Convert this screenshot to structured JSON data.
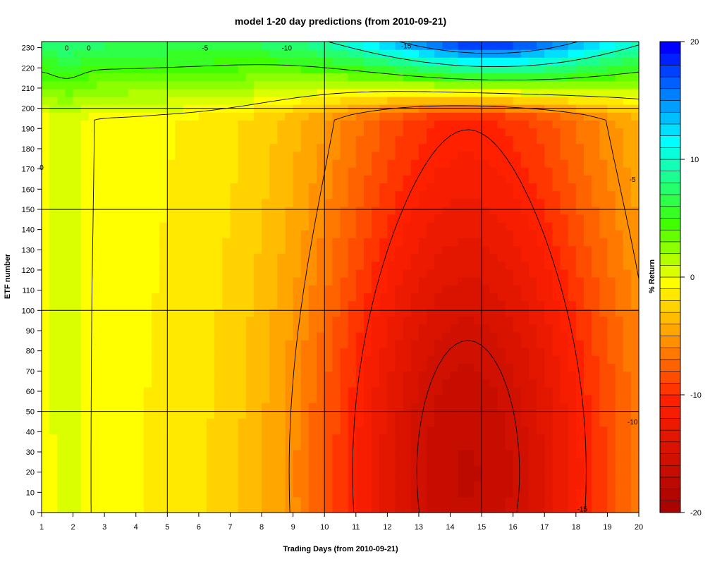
{
  "chart_data": {
    "type": "heatmap",
    "title": "model 1-20 day predictions (from 2010-09-21)",
    "xlabel": "Trading Days (from 2010-09-21)",
    "ylabel": "ETF number",
    "colorbar_label": "% Return",
    "x_ticks": [
      "1",
      "2",
      "3",
      "4",
      "5",
      "6",
      "7",
      "8",
      "9",
      "10",
      "11",
      "12",
      "13",
      "14",
      "15",
      "16",
      "17",
      "18",
      "19",
      "20"
    ],
    "y_ticks": [
      "0",
      "10",
      "20",
      "30",
      "40",
      "50",
      "60",
      "70",
      "80",
      "90",
      "100",
      "110",
      "120",
      "130",
      "140",
      "150",
      "160",
      "170",
      "180",
      "190",
      "200",
      "210",
      "220",
      "230"
    ],
    "colorbar_ticks": [
      "20",
      "10",
      "0",
      "-10",
      "-20"
    ],
    "xlim": [
      1,
      20
    ],
    "ylim": [
      0,
      233
    ],
    "zlim": [
      -20,
      20
    ],
    "grid_x": [
      5,
      10,
      15
    ],
    "grid_y": [
      50,
      100,
      150,
      200
    ],
    "contour_labels": [
      {
        "text": "0",
        "x": 1.8,
        "y": 230
      },
      {
        "text": "0",
        "x": 2.5,
        "y": 230
      },
      {
        "text": "0",
        "x": 1.0,
        "y": 171
      },
      {
        "text": "-5",
        "x": 6.2,
        "y": 230
      },
      {
        "text": "-10",
        "x": 8.8,
        "y": 230
      },
      {
        "text": "-15",
        "x": 12.6,
        "y": 231
      },
      {
        "text": "-5",
        "x": 19.8,
        "y": 165
      },
      {
        "text": "-10",
        "x": 19.8,
        "y": 45
      },
      {
        "text": "-15",
        "x": 18.2,
        "y": 2
      }
    ],
    "legend_position": "right",
    "colormap": {
      "low": "#a00000",
      "mid_low": "#ff2000",
      "zero": "#ffff00",
      "mid_high": "#40ff00",
      "cyan": "#00ffff",
      "high": "#0000ff"
    }
  }
}
